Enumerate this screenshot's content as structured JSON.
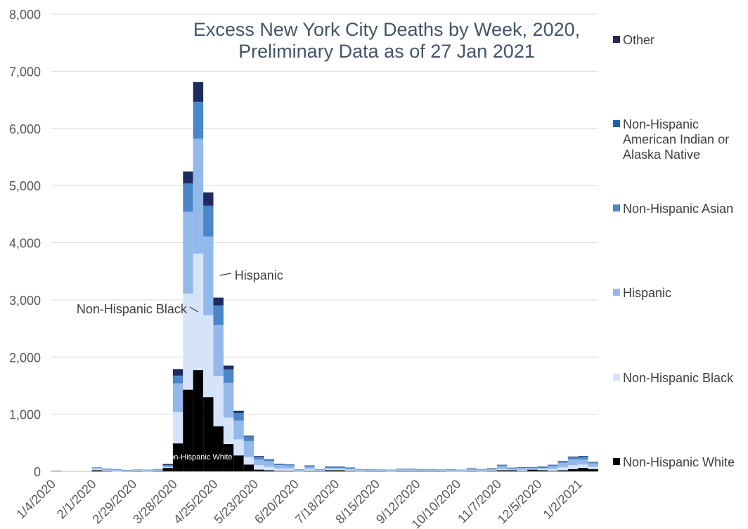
{
  "chart_data": {
    "type": "bar",
    "stacked": true,
    "title_lines": [
      "Excess New York City Deaths by Week, 2020,",
      "Preliminary Data as of 27 Jan 2021"
    ],
    "xlabel": "",
    "ylabel": "",
    "ylim": [
      0,
      8000
    ],
    "yticks": [
      0,
      1000,
      2000,
      3000,
      4000,
      5000,
      6000,
      7000,
      8000
    ],
    "ytick_labels": [
      "0",
      "1,000",
      "2,000",
      "3,000",
      "4,000",
      "5,000",
      "6,000",
      "7,000",
      "8,000"
    ],
    "grid": true,
    "legend_position": "right",
    "categories": [
      "1/4/2020",
      "1/11/2020",
      "1/18/2020",
      "1/25/2020",
      "2/1/2020",
      "2/8/2020",
      "2/15/2020",
      "2/22/2020",
      "2/29/2020",
      "3/7/2020",
      "3/14/2020",
      "3/21/2020",
      "3/28/2020",
      "4/4/2020",
      "4/11/2020",
      "4/18/2020",
      "4/25/2020",
      "5/2/2020",
      "5/9/2020",
      "5/16/2020",
      "5/23/2020",
      "5/30/2020",
      "6/6/2020",
      "6/13/2020",
      "6/20/2020",
      "6/27/2020",
      "7/4/2020",
      "7/11/2020",
      "7/18/2020",
      "7/25/2020",
      "8/1/2020",
      "8/8/2020",
      "8/15/2020",
      "8/22/2020",
      "8/29/2020",
      "9/5/2020",
      "9/12/2020",
      "9/19/2020",
      "9/26/2020",
      "10/3/2020",
      "10/10/2020",
      "10/17/2020",
      "10/24/2020",
      "10/31/2020",
      "11/7/2020",
      "11/14/2020",
      "11/21/2020",
      "11/28/2020",
      "12/5/2020",
      "12/12/2020",
      "12/19/2020",
      "12/26/2020",
      "1/2/2021",
      "1/9/2021"
    ],
    "tick_labels": [
      "1/4/2020",
      "2/1/2020",
      "2/29/2020",
      "3/28/2020",
      "4/25/2020",
      "5/23/2020",
      "6/20/2020",
      "7/18/2020",
      "8/15/2020",
      "9/12/2020",
      "10/10/2020",
      "11/7/2020",
      "12/5/2020",
      "1/2/2021"
    ],
    "series": [
      {
        "name": "Non-Hispanic White",
        "color": "#000000",
        "values": [
          5,
          0,
          0,
          0,
          20,
          10,
          0,
          5,
          10,
          5,
          10,
          60,
          490,
          1430,
          1770,
          1300,
          790,
          480,
          280,
          120,
          30,
          20,
          10,
          10,
          5,
          10,
          10,
          20,
          20,
          10,
          5,
          10,
          10,
          5,
          10,
          10,
          10,
          10,
          10,
          5,
          5,
          10,
          5,
          10,
          20,
          20,
          10,
          30,
          20,
          10,
          20,
          40,
          60,
          40
        ]
      },
      {
        "name": "Non-Hispanic Black",
        "color": "#d6e4fb",
        "values": [
          5,
          0,
          0,
          0,
          20,
          10,
          10,
          5,
          10,
          10,
          10,
          10,
          550,
          1680,
          2040,
          1430,
          880,
          460,
          280,
          130,
          80,
          60,
          40,
          40,
          10,
          30,
          10,
          20,
          20,
          20,
          10,
          10,
          10,
          10,
          10,
          10,
          10,
          10,
          10,
          10,
          10,
          10,
          10,
          10,
          20,
          10,
          20,
          10,
          20,
          30,
          50,
          70,
          60,
          40
        ]
      },
      {
        "name": "Hispanic",
        "color": "#93b8ea",
        "values": [
          5,
          0,
          0,
          0,
          20,
          20,
          20,
          10,
          10,
          10,
          10,
          20,
          500,
          1430,
          2010,
          1380,
          890,
          610,
          330,
          280,
          100,
          100,
          60,
          50,
          10,
          40,
          10,
          20,
          20,
          20,
          10,
          10,
          10,
          10,
          20,
          20,
          10,
          10,
          10,
          10,
          10,
          20,
          10,
          20,
          50,
          20,
          30,
          20,
          20,
          50,
          80,
          100,
          90,
          60
        ]
      },
      {
        "name": "Non-Hispanic Asian",
        "color": "#4a86c8",
        "values": [
          0,
          0,
          0,
          0,
          10,
          10,
          10,
          5,
          5,
          5,
          10,
          20,
          130,
          490,
          640,
          530,
          340,
          230,
          130,
          80,
          50,
          30,
          20,
          20,
          10,
          20,
          10,
          20,
          20,
          20,
          10,
          10,
          5,
          5,
          10,
          10,
          10,
          10,
          5,
          10,
          5,
          10,
          10,
          10,
          20,
          10,
          10,
          10,
          20,
          20,
          20,
          40,
          50,
          20
        ]
      },
      {
        "name": "Non-Hispanic American Indian or Alaska Native",
        "color": "#1f5eb0",
        "values": [
          0,
          0,
          0,
          0,
          0,
          0,
          0,
          0,
          0,
          0,
          0,
          0,
          5,
          10,
          10,
          10,
          5,
          5,
          5,
          0,
          0,
          0,
          0,
          0,
          0,
          0,
          0,
          0,
          0,
          0,
          0,
          0,
          0,
          0,
          0,
          0,
          0,
          0,
          0,
          0,
          0,
          0,
          0,
          0,
          0,
          0,
          0,
          0,
          0,
          0,
          0,
          0,
          0,
          0
        ]
      },
      {
        "name": "Other",
        "color": "#1f2a5e",
        "values": [
          0,
          0,
          0,
          0,
          0,
          0,
          0,
          0,
          0,
          0,
          0,
          20,
          115,
          205,
          340,
          230,
          135,
          65,
          35,
          15,
          10,
          5,
          5,
          5,
          0,
          5,
          0,
          5,
          5,
          0,
          0,
          0,
          0,
          0,
          0,
          0,
          0,
          0,
          0,
          0,
          0,
          5,
          0,
          5,
          5,
          5,
          5,
          5,
          5,
          5,
          10,
          10,
          10,
          5
        ]
      }
    ],
    "annotations": [
      {
        "text": "Hispanic",
        "category_index": 16
      },
      {
        "text": "Non-Hispanic Black",
        "category_index": 14
      },
      {
        "text": "Non-Hispanic White",
        "category_index": 14
      }
    ]
  }
}
